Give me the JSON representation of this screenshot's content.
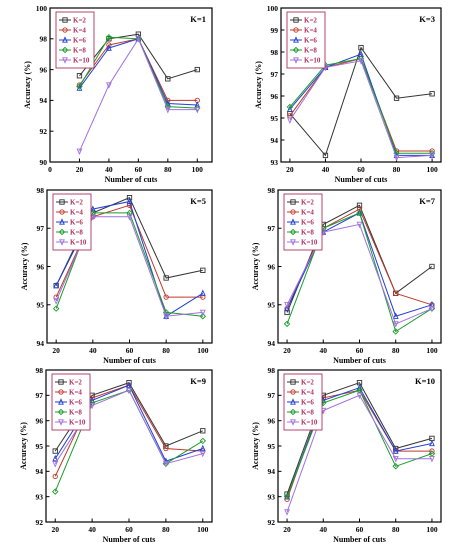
{
  "colors": {
    "K=2": "#333333",
    "K=4": "#c0392b",
    "K=6": "#1f3fd6",
    "K=8": "#1a9e2a",
    "K=10": "#a070e0"
  },
  "chart_data": [
    {
      "type": "line",
      "title": "K=1",
      "xlabel": "Number of cuts",
      "ylabel": "Accuracy (%)",
      "x": [
        20,
        40,
        60,
        80,
        100
      ],
      "xlim": [
        0,
        110
      ],
      "ylim": [
        90,
        100
      ],
      "xticks": [
        0,
        20,
        40,
        60,
        80,
        100
      ],
      "yticks": [
        90,
        92,
        94,
        96,
        98,
        100
      ],
      "legend": "top-left",
      "series": [
        {
          "name": "K=2",
          "values": [
            95.6,
            98.0,
            98.3,
            95.4,
            96.0
          ]
        },
        {
          "name": "K=4",
          "values": [
            95.0,
            97.6,
            98.0,
            94.0,
            94.0
          ]
        },
        {
          "name": "K=6",
          "values": [
            94.8,
            97.4,
            98.0,
            93.8,
            93.7
          ]
        },
        {
          "name": "K=8",
          "values": [
            94.9,
            98.1,
            98.0,
            93.6,
            93.5
          ]
        },
        {
          "name": "K=10",
          "values": [
            90.7,
            95.0,
            98.0,
            93.4,
            93.4
          ]
        }
      ]
    },
    {
      "type": "line",
      "title": "K=3",
      "xlabel": "Number of cuts",
      "ylabel": "Accuracy (%)",
      "x": [
        20,
        40,
        60,
        80,
        100
      ],
      "xlim": [
        15,
        105
      ],
      "ylim": [
        93,
        100
      ],
      "xticks": [
        20,
        40,
        60,
        80,
        100
      ],
      "yticks": [
        93,
        94,
        95,
        96,
        97,
        98,
        99,
        100
      ],
      "legend": "top-left",
      "series": [
        {
          "name": "K=2",
          "values": [
            95.2,
            93.3,
            98.2,
            95.9,
            96.1
          ]
        },
        {
          "name": "K=4",
          "values": [
            95.1,
            97.3,
            97.7,
            93.5,
            93.5
          ]
        },
        {
          "name": "K=6",
          "values": [
            95.4,
            97.3,
            97.9,
            93.3,
            93.3
          ]
        },
        {
          "name": "K=8",
          "values": [
            95.5,
            97.4,
            97.7,
            93.4,
            93.4
          ]
        },
        {
          "name": "K=10",
          "values": [
            94.9,
            97.3,
            97.6,
            93.2,
            93.3
          ]
        }
      ]
    },
    {
      "type": "line",
      "title": "K=5",
      "xlabel": "Number of cuts",
      "ylabel": "Accuracy (%)",
      "x": [
        20,
        40,
        60,
        80,
        100
      ],
      "xlim": [
        15,
        105
      ],
      "ylim": [
        94,
        98
      ],
      "xticks": [
        20,
        40,
        60,
        80,
        100
      ],
      "yticks": [
        94,
        95,
        96,
        97,
        98
      ],
      "legend": "top-left",
      "series": [
        {
          "name": "K=2",
          "values": [
            95.5,
            97.4,
            97.8,
            95.7,
            95.9
          ]
        },
        {
          "name": "K=4",
          "values": [
            95.2,
            97.3,
            97.6,
            95.2,
            95.2
          ]
        },
        {
          "name": "K=6",
          "values": [
            95.5,
            97.5,
            97.7,
            94.7,
            95.3
          ]
        },
        {
          "name": "K=8",
          "values": [
            94.9,
            97.4,
            97.4,
            94.8,
            94.7
          ]
        },
        {
          "name": "K=10",
          "values": [
            95.1,
            97.3,
            97.3,
            94.7,
            94.8
          ]
        }
      ]
    },
    {
      "type": "line",
      "title": "K=7",
      "xlabel": "Number of cuts",
      "ylabel": "Accuracy (%)",
      "x": [
        20,
        40,
        60,
        80,
        100
      ],
      "xlim": [
        15,
        105
      ],
      "ylim": [
        94,
        98
      ],
      "xticks": [
        20,
        40,
        60,
        80,
        100
      ],
      "yticks": [
        94,
        95,
        96,
        97,
        98
      ],
      "legend": "top-left",
      "series": [
        {
          "name": "K=2",
          "values": [
            94.8,
            97.1,
            97.6,
            95.3,
            96.0
          ]
        },
        {
          "name": "K=4",
          "values": [
            94.9,
            97.0,
            97.5,
            95.3,
            95.0
          ]
        },
        {
          "name": "K=6",
          "values": [
            94.9,
            96.9,
            97.4,
            94.7,
            95.0
          ]
        },
        {
          "name": "K=8",
          "values": [
            94.5,
            97.0,
            97.4,
            94.3,
            94.9
          ]
        },
        {
          "name": "K=10",
          "values": [
            95.0,
            96.9,
            97.1,
            94.5,
            94.9
          ]
        }
      ]
    },
    {
      "type": "line",
      "title": "K=9",
      "xlabel": "Number of cuts",
      "ylabel": "Accuracy (%)",
      "x": [
        20,
        40,
        60,
        80,
        100
      ],
      "xlim": [
        15,
        105
      ],
      "ylim": [
        92,
        98
      ],
      "xticks": [
        20,
        40,
        60,
        80,
        100
      ],
      "yticks": [
        92,
        93,
        94,
        95,
        96,
        97,
        98
      ],
      "legend": "top-left",
      "series": [
        {
          "name": "K=2",
          "values": [
            94.8,
            97.0,
            97.5,
            95.0,
            95.6
          ]
        },
        {
          "name": "K=4",
          "values": [
            93.8,
            96.9,
            97.4,
            94.9,
            94.8
          ]
        },
        {
          "name": "K=6",
          "values": [
            94.5,
            96.8,
            97.4,
            94.4,
            94.9
          ]
        },
        {
          "name": "K=8",
          "values": [
            93.2,
            96.7,
            97.2,
            94.3,
            95.2
          ]
        },
        {
          "name": "K=10",
          "values": [
            94.3,
            96.6,
            97.2,
            94.3,
            94.7
          ]
        }
      ]
    },
    {
      "type": "line",
      "title": "K=10",
      "xlabel": "Number of cuts",
      "ylabel": "Accuracy (%)",
      "x": [
        20,
        40,
        60,
        80,
        100
      ],
      "xlim": [
        15,
        105
      ],
      "ylim": [
        92,
        98
      ],
      "xticks": [
        20,
        40,
        60,
        80,
        100
      ],
      "yticks": [
        92,
        93,
        94,
        95,
        96,
        97,
        98
      ],
      "legend": "top-left",
      "series": [
        {
          "name": "K=2",
          "values": [
            93.1,
            97.0,
            97.5,
            94.9,
            95.3
          ]
        },
        {
          "name": "K=4",
          "values": [
            92.9,
            96.9,
            97.2,
            94.8,
            94.8
          ]
        },
        {
          "name": "K=6",
          "values": [
            93.0,
            96.8,
            97.3,
            94.8,
            95.1
          ]
        },
        {
          "name": "K=8",
          "values": [
            93.0,
            96.7,
            97.2,
            94.2,
            94.7
          ]
        },
        {
          "name": "K=10",
          "values": [
            92.4,
            96.4,
            97.0,
            94.5,
            94.5
          ]
        }
      ]
    }
  ]
}
